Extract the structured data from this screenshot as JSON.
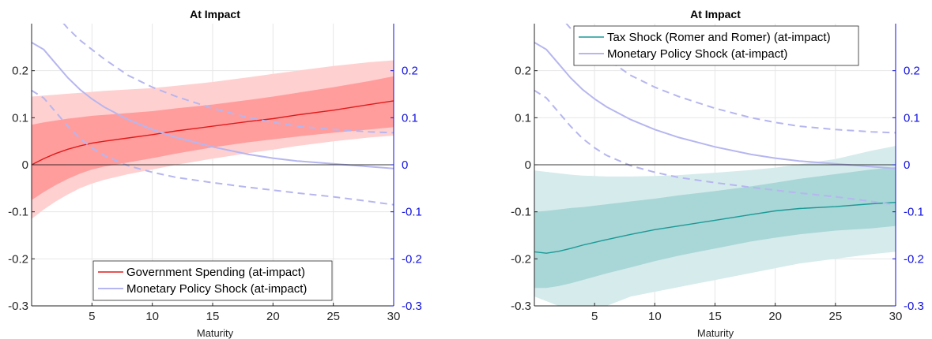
{
  "colors": {
    "red_line": "#e01a1a",
    "red_band_outer": "#ffd0d0",
    "red_band_inner": "#ff9d9d",
    "teal_line": "#1a9a96",
    "teal_band_outer": "#d6ebec",
    "teal_band_inner": "#a9d6d7",
    "monetary": "#b6b6f0",
    "right_axis": "#1010e0",
    "zero_line": "#000000"
  },
  "chart_data": [
    {
      "type": "line",
      "title": "At Impact",
      "xlabel": "Maturity",
      "ylabel": "",
      "xlim": [
        0,
        30
      ],
      "ylim": [
        -0.3,
        0.3
      ],
      "y2lim": [
        -0.3,
        0.3
      ],
      "xticks": [
        "5",
        "10",
        "15",
        "20",
        "25",
        "30"
      ],
      "yticks": [
        "0.2",
        "0.1",
        "0",
        "-0.1",
        "-0.2",
        "-0.3"
      ],
      "y2ticks": [
        "0.2",
        "0.1",
        "0",
        "-0.1",
        "-0.2",
        "-0.3"
      ],
      "grid": true,
      "legend_position": "bottom-center",
      "legend": [
        "Government Spending (at-impact)",
        "Monetary Policy Shock (at-impact)"
      ],
      "x": [
        0,
        1,
        2,
        3,
        4,
        5,
        6,
        8,
        10,
        12,
        15,
        18,
        20,
        22,
        25,
        28,
        30
      ],
      "series": [
        {
          "name": "Government Spending (at-impact)",
          "axis": "left",
          "values": [
            0.0,
            0.013,
            0.024,
            0.033,
            0.04,
            0.046,
            0.05,
            0.057,
            0.064,
            0.072,
            0.082,
            0.092,
            0.098,
            0.106,
            0.116,
            0.128,
            0.136
          ],
          "band_outer_upper": [
            0.145,
            0.147,
            0.149,
            0.151,
            0.153,
            0.155,
            0.157,
            0.16,
            0.163,
            0.168,
            0.176,
            0.186,
            0.193,
            0.2,
            0.21,
            0.218,
            0.222
          ],
          "band_outer_lower": [
            -0.115,
            -0.095,
            -0.078,
            -0.063,
            -0.05,
            -0.04,
            -0.032,
            -0.02,
            -0.01,
            0.0,
            0.013,
            0.025,
            0.032,
            0.04,
            0.05,
            0.058,
            0.062
          ],
          "band_inner_upper": [
            0.085,
            0.09,
            0.094,
            0.098,
            0.101,
            0.104,
            0.106,
            0.11,
            0.114,
            0.12,
            0.128,
            0.138,
            0.145,
            0.153,
            0.165,
            0.178,
            0.188
          ],
          "band_inner_lower": [
            -0.075,
            -0.058,
            -0.043,
            -0.03,
            -0.019,
            -0.01,
            -0.004,
            0.005,
            0.014,
            0.024,
            0.037,
            0.048,
            0.054,
            0.06,
            0.068,
            0.075,
            0.08
          ]
        },
        {
          "name": "Monetary Policy Shock (at-impact)",
          "axis": "right",
          "values": [
            0.26,
            0.245,
            0.215,
            0.185,
            0.16,
            0.14,
            0.123,
            0.096,
            0.075,
            0.058,
            0.038,
            0.022,
            0.014,
            0.008,
            0.002,
            -0.004,
            -0.008
          ],
          "band_upper": [
            0.375,
            0.355,
            0.32,
            0.29,
            0.265,
            0.245,
            0.225,
            0.19,
            0.165,
            0.145,
            0.12,
            0.1,
            0.09,
            0.082,
            0.075,
            0.07,
            0.068
          ],
          "band_lower": [
            0.158,
            0.142,
            0.112,
            0.082,
            0.056,
            0.036,
            0.02,
            -0.002,
            -0.016,
            -0.027,
            -0.038,
            -0.048,
            -0.054,
            -0.06,
            -0.068,
            -0.078,
            -0.085
          ]
        }
      ]
    },
    {
      "type": "line",
      "title": "At Impact",
      "xlabel": "Maturity",
      "ylabel": "",
      "xlim": [
        0,
        30
      ],
      "ylim": [
        -0.3,
        0.3
      ],
      "y2lim": [
        -0.3,
        0.3
      ],
      "xticks": [
        "5",
        "10",
        "15",
        "20",
        "25",
        "30"
      ],
      "yticks": [
        "0.2",
        "0.1",
        "0",
        "-0.1",
        "-0.2",
        "-0.3"
      ],
      "y2ticks": [
        "0.2",
        "0.1",
        "0",
        "-0.1",
        "-0.2",
        "-0.3"
      ],
      "grid": true,
      "legend_position": "top-center",
      "legend": [
        "Tax Shock (Romer and Romer) (at-impact)",
        "Monetary Policy Shock (at-impact)"
      ],
      "x": [
        0,
        1,
        2,
        3,
        4,
        5,
        6,
        8,
        10,
        12,
        15,
        18,
        20,
        22,
        25,
        28,
        30
      ],
      "series": [
        {
          "name": "Tax Shock (Romer and Romer) (at-impact)",
          "axis": "left",
          "values": [
            -0.185,
            -0.188,
            -0.184,
            -0.178,
            -0.171,
            -0.165,
            -0.159,
            -0.148,
            -0.138,
            -0.13,
            -0.118,
            -0.106,
            -0.098,
            -0.093,
            -0.089,
            -0.083,
            -0.08
          ],
          "band_outer_upper": [
            -0.012,
            -0.015,
            -0.018,
            -0.021,
            -0.023,
            -0.024,
            -0.025,
            -0.025,
            -0.024,
            -0.022,
            -0.017,
            -0.011,
            -0.006,
            0.001,
            0.012,
            0.03,
            0.04
          ],
          "band_outer_lower": [
            -0.28,
            -0.29,
            -0.3,
            -0.305,
            -0.31,
            -0.31,
            -0.3,
            -0.28,
            -0.27,
            -0.26,
            -0.245,
            -0.23,
            -0.22,
            -0.21,
            -0.2,
            -0.19,
            -0.185
          ],
          "band_inner_upper": [
            -0.1,
            -0.098,
            -0.095,
            -0.092,
            -0.09,
            -0.087,
            -0.084,
            -0.078,
            -0.072,
            -0.065,
            -0.056,
            -0.046,
            -0.038,
            -0.03,
            -0.02,
            -0.01,
            -0.005
          ],
          "band_inner_lower": [
            -0.262,
            -0.262,
            -0.258,
            -0.252,
            -0.245,
            -0.238,
            -0.231,
            -0.218,
            -0.205,
            -0.193,
            -0.178,
            -0.163,
            -0.155,
            -0.148,
            -0.14,
            -0.135,
            -0.13
          ]
        },
        {
          "name": "Monetary Policy Shock (at-impact)",
          "axis": "right",
          "values": [
            0.26,
            0.245,
            0.215,
            0.185,
            0.16,
            0.14,
            0.123,
            0.096,
            0.075,
            0.058,
            0.038,
            0.022,
            0.014,
            0.008,
            0.002,
            -0.004,
            -0.008
          ],
          "band_upper": [
            0.375,
            0.355,
            0.32,
            0.29,
            0.265,
            0.245,
            0.225,
            0.19,
            0.165,
            0.145,
            0.12,
            0.1,
            0.09,
            0.082,
            0.075,
            0.07,
            0.068
          ],
          "band_lower": [
            0.158,
            0.142,
            0.112,
            0.082,
            0.056,
            0.036,
            0.02,
            -0.002,
            -0.016,
            -0.027,
            -0.038,
            -0.048,
            -0.054,
            -0.06,
            -0.068,
            -0.078,
            -0.085
          ]
        }
      ]
    }
  ]
}
